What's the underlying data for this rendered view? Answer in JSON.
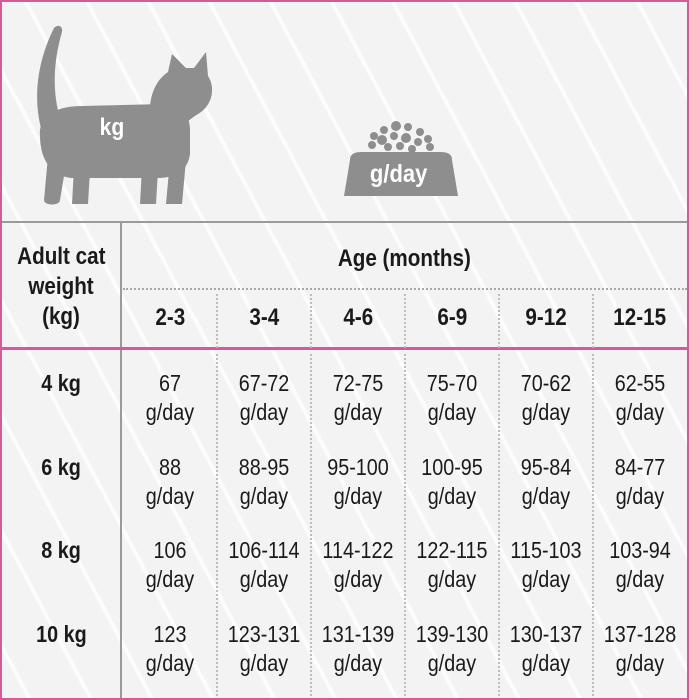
{
  "icons": {
    "cat": {
      "name": "cat-silhouette-icon",
      "label": "kg",
      "color": "#8e8e8e"
    },
    "bowl": {
      "name": "food-bowl-icon",
      "label": "g/day",
      "color": "#8e8e8e"
    }
  },
  "table": {
    "weight_header": [
      "Adult cat",
      "weight",
      "(kg)"
    ],
    "age_header": "Age (months)",
    "age_columns": [
      "2-3",
      "3-4",
      "4-6",
      "6-9",
      "9-12",
      "12-15"
    ],
    "unit": "g/day",
    "rows": [
      {
        "weight": "4 kg",
        "values": [
          "67",
          "67-72",
          "72-75",
          "75-70",
          "70-62",
          "62-55"
        ]
      },
      {
        "weight": "6 kg",
        "values": [
          "88",
          "88-95",
          "95-100",
          "100-95",
          "95-84",
          "84-77"
        ]
      },
      {
        "weight": "8 kg",
        "values": [
          "106",
          "106-114",
          "114-122",
          "122-115",
          "115-103",
          "103-94"
        ]
      },
      {
        "weight": "10 kg",
        "values": [
          "123",
          "123-131",
          "131-139",
          "139-130",
          "130-137",
          "137-128"
        ]
      }
    ]
  },
  "colors": {
    "accent": "#d65a93",
    "icon": "#8e8e8e",
    "grid": "#9a9a9a"
  }
}
